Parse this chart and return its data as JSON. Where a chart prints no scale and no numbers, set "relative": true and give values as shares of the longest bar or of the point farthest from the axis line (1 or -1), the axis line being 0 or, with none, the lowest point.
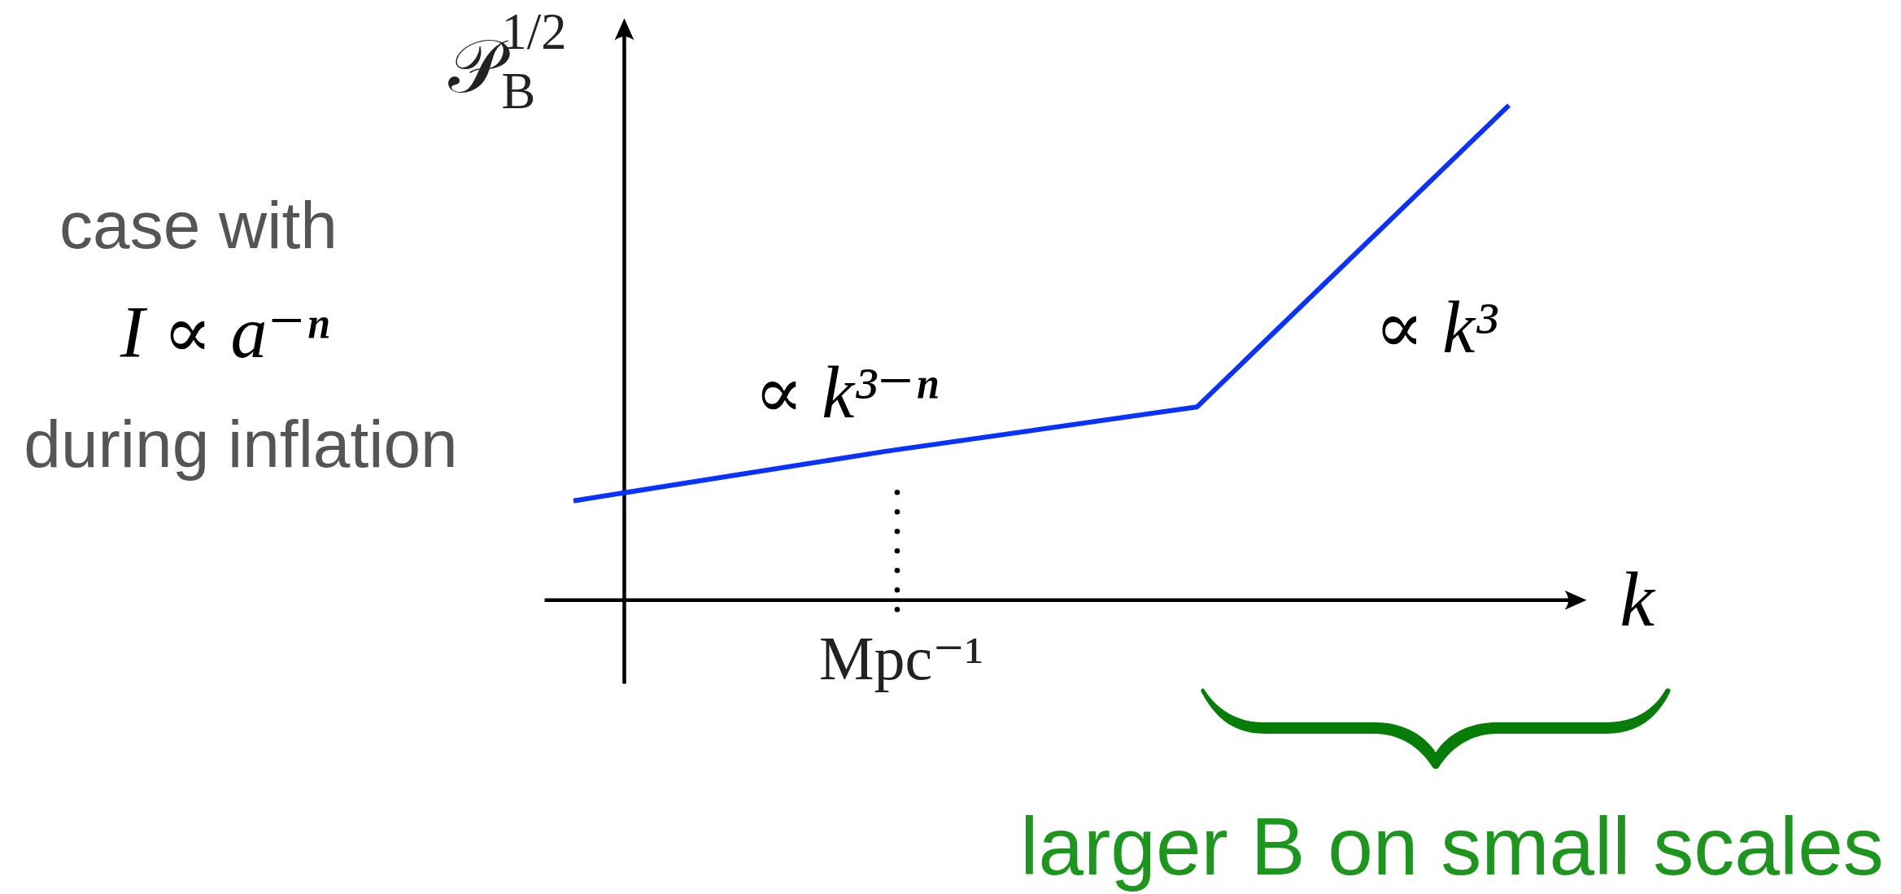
{
  "chart_data": {
    "type": "line",
    "ylabel": "𝒫$_{B}$$^{1/2}$",
    "xlabel": "k",
    "relative": true,
    "categories": [
      null,
      null,
      null,
      null
    ],
    "values": [
      0.2,
      0.3,
      0.39,
      1
    ],
    "color": "#0a32ff",
    "annotations": [
      "case with",
      "I ∝ a⁻ⁿ",
      "during inflation",
      "∝ k³⁻ⁿ",
      "∝ k³",
      "Mpc⁻¹",
      "larger B on small scales"
    ]
  }
}
